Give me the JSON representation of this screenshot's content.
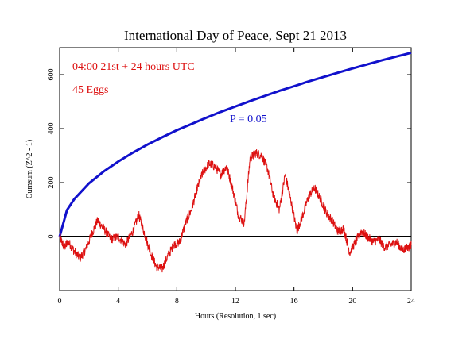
{
  "chart_data": {
    "type": "line",
    "title": "International Day of Peace, Sept 21 2013",
    "xlabel": "Hours (Resolution, 1 sec)",
    "ylabel": "Cumsum (Z^2 - 1)",
    "xlim": [
      0,
      24
    ],
    "ylim": [
      -200,
      700
    ],
    "xticks": [
      0,
      4,
      8,
      12,
      16,
      20,
      24
    ],
    "yticks": [
      0,
      200,
      400,
      600
    ],
    "annotations": {
      "time_range": "04:00 21st + 24 hours UTC",
      "eggs": "45 Eggs",
      "p_label": "P = 0.05"
    },
    "baseline": 0,
    "colors": {
      "data": "#dd1111",
      "probability": "#1111cc",
      "frame": "#000000"
    },
    "series": [
      {
        "name": "P = 0.05",
        "x": [
          0,
          0.5,
          1,
          2,
          3,
          4,
          5,
          6,
          7,
          8,
          9,
          10,
          11,
          12,
          13,
          14,
          15,
          16,
          17,
          18,
          19,
          20,
          21,
          22,
          23,
          24
        ],
        "values": [
          0,
          98,
          139,
          197,
          241,
          278,
          311,
          341,
          368,
          394,
          417,
          440,
          462,
          482,
          502,
          521,
          540,
          557,
          575,
          591,
          607,
          623,
          638,
          653,
          667,
          681
        ]
      },
      {
        "name": "Cumsum",
        "x": [
          0,
          0.3,
          0.6,
          1,
          1.4,
          1.8,
          2.2,
          2.6,
          3,
          3.5,
          4,
          4.5,
          5,
          5.4,
          5.8,
          6.2,
          6.6,
          7,
          7.4,
          7.8,
          8.2,
          8.6,
          9,
          9.4,
          9.8,
          10.2,
          10.6,
          11,
          11.4,
          11.8,
          12.2,
          12.6,
          13,
          13.4,
          13.8,
          14.2,
          14.6,
          15,
          15.4,
          15.8,
          16.2,
          16.6,
          17,
          17.4,
          17.8,
          18.2,
          18.6,
          19,
          19.4,
          19.8,
          20.2,
          20.6,
          21,
          21.4,
          21.8,
          22.2,
          22.6,
          23,
          23.4,
          23.8,
          24
        ],
        "values": [
          0,
          -40,
          -20,
          -55,
          -80,
          -45,
          10,
          60,
          30,
          -10,
          0,
          -30,
          20,
          80,
          10,
          -60,
          -110,
          -120,
          -70,
          -30,
          -20,
          50,
          100,
          180,
          240,
          270,
          260,
          230,
          260,
          180,
          80,
          50,
          290,
          310,
          300,
          250,
          150,
          100,
          230,
          130,
          20,
          80,
          150,
          180,
          140,
          90,
          60,
          20,
          30,
          -60,
          -20,
          20,
          0,
          -20,
          -10,
          -40,
          -30,
          -20,
          -50,
          -40,
          -30
        ]
      }
    ]
  }
}
